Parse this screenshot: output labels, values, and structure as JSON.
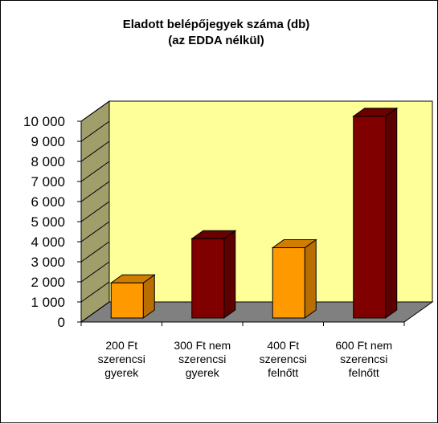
{
  "chart_data": {
    "type": "bar",
    "title": "Eladott belépőjegyek száma (db)",
    "subtitle": "(az EDDA nélkül)",
    "categories": [
      [
        "200 Ft",
        "szerencsi",
        "gyerek"
      ],
      [
        "300 Ft nem",
        "szerencsi",
        "gyerek"
      ],
      [
        "400 Ft",
        "szerencsi",
        "felnőtt"
      ],
      [
        "600 Ft nem",
        "szerencsi",
        "felnőtt"
      ]
    ],
    "values": [
      1750,
      3950,
      3500,
      10050
    ],
    "bar_colors": [
      "#ff9900",
      "#800000",
      "#ff9900",
      "#800000"
    ],
    "ylim": [
      0,
      10000
    ],
    "yticks": [
      0,
      1000,
      2000,
      3000,
      4000,
      5000,
      6000,
      7000,
      8000,
      9000,
      10000
    ],
    "ytick_labels": [
      "0",
      "1 000",
      "2 000",
      "3 000",
      "4 000",
      "5 000",
      "6 000",
      "7 000",
      "8 000",
      "9 000",
      "10 000"
    ],
    "grid": false,
    "legend": "none",
    "wall_color": "#ffff99",
    "side_wall_color": "#a09f6b",
    "floor_color": "#808080"
  }
}
